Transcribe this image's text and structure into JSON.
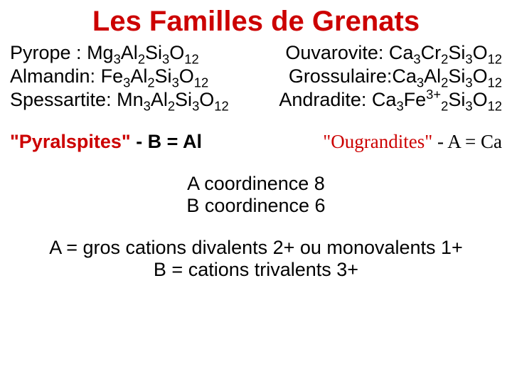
{
  "title": {
    "text": "Les Familles de Grenats",
    "color": "#cc0000",
    "fontsize": 40
  },
  "text_color": "#000000",
  "body_fontsize": 27,
  "formulas": {
    "pyrope": {
      "name": "Pyrope : ",
      "base": "Mg",
      "a": "3",
      "b": "Al",
      "bn": "2",
      "si": "Si",
      "sn": "3",
      "o": "O",
      "on": "12"
    },
    "ouvarovite": {
      "name": "Ouvarovite: ",
      "base": "Ca",
      "a": "3",
      "b": "Cr",
      "bn": "2",
      "si": "Si",
      "sn": "3",
      "o": "O",
      "on": "12"
    },
    "almandin": {
      "name": "Almandin: ",
      "base": "Fe",
      "a": "3",
      "b": "Al",
      "bn": "2",
      "si": "Si",
      "sn": "3",
      "o": "O",
      "on": "12"
    },
    "grossulaire": {
      "name": "Grossulaire:",
      "base": "Ca",
      "a": "3",
      "b": "Al",
      "bn": "2",
      "si": "Si",
      "sn": "3",
      "o": "O",
      "on": "12"
    },
    "spessartite": {
      "name": "Spessartite: ",
      "base": "Mn",
      "a": "3",
      "b": "Al",
      "bn": "2",
      "si": "Si",
      "sn": "3",
      "o": "O",
      "on": "12"
    },
    "andradite": {
      "name": " Andradite: ",
      "base": "Ca",
      "a": "3",
      "b": "Fe",
      "bsup": "3+",
      "bn": "2",
      "si": "Si",
      "sn": "3",
      "o": "O",
      "on": "12"
    }
  },
  "groups": {
    "left": {
      "quoted": "\"Pyralspites\"",
      "rest": "  -  B = Al",
      "color": "#cc0000"
    },
    "right": {
      "quoted": "\"Ougrandites\"",
      "rest": "  -  A = Ca",
      "color": "#cc0000"
    }
  },
  "coord": {
    "line1": "A coordinence 8",
    "line2": "B coordinence 6"
  },
  "notes": {
    "line1": "A = gros cations divalents 2+ ou monovalents 1+",
    "line2": "B = cations trivalents 3+"
  }
}
